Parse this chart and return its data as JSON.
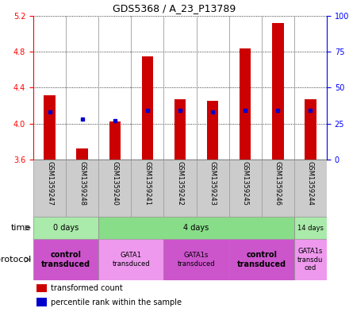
{
  "title": "GDS5368 / A_23_P13789",
  "samples": [
    "GSM1359247",
    "GSM1359248",
    "GSM1359240",
    "GSM1359241",
    "GSM1359242",
    "GSM1359243",
    "GSM1359245",
    "GSM1359246",
    "GSM1359244"
  ],
  "transformed_count": [
    4.32,
    3.72,
    4.02,
    4.75,
    4.27,
    4.25,
    4.84,
    5.12,
    4.27
  ],
  "percentile_rank": [
    33,
    28,
    27,
    34,
    34,
    33,
    34,
    34,
    34
  ],
  "bar_bottom": 3.6,
  "ylim_left": [
    3.6,
    5.2
  ],
  "ylim_right": [
    0,
    100
  ],
  "yticks_left": [
    3.6,
    4.0,
    4.4,
    4.8,
    5.2
  ],
  "yticks_right": [
    0,
    25,
    50,
    75,
    100
  ],
  "bar_color": "#cc0000",
  "dot_color": "#0000cc",
  "time_groups": [
    {
      "label": "0 days",
      "start": 0,
      "end": 2,
      "color": "#aaeaaa"
    },
    {
      "label": "4 days",
      "start": 2,
      "end": 8,
      "color": "#88dd88"
    },
    {
      "label": "14 days",
      "start": 8,
      "end": 9,
      "color": "#aaeaaa"
    }
  ],
  "protocol_groups": [
    {
      "label": "control\ntransduced",
      "start": 0,
      "end": 2,
      "color": "#cc55cc",
      "bold": true
    },
    {
      "label": "GATA1\ntransduced",
      "start": 2,
      "end": 4,
      "color": "#ee99ee",
      "bold": false
    },
    {
      "label": "GATA1s\ntransduced",
      "start": 4,
      "end": 6,
      "color": "#cc55cc",
      "bold": false
    },
    {
      "label": "control\ntransduced",
      "start": 6,
      "end": 8,
      "color": "#cc55cc",
      "bold": true
    },
    {
      "label": "GATA1s\ntransdu\nced",
      "start": 8,
      "end": 9,
      "color": "#ee99ee",
      "bold": false
    }
  ],
  "legend_items": [
    {
      "color": "#cc0000",
      "label": "transformed count"
    },
    {
      "color": "#0000cc",
      "label": "percentile rank within the sample"
    }
  ],
  "label_bg_color": "#cccccc",
  "label_border_color": "#999999"
}
